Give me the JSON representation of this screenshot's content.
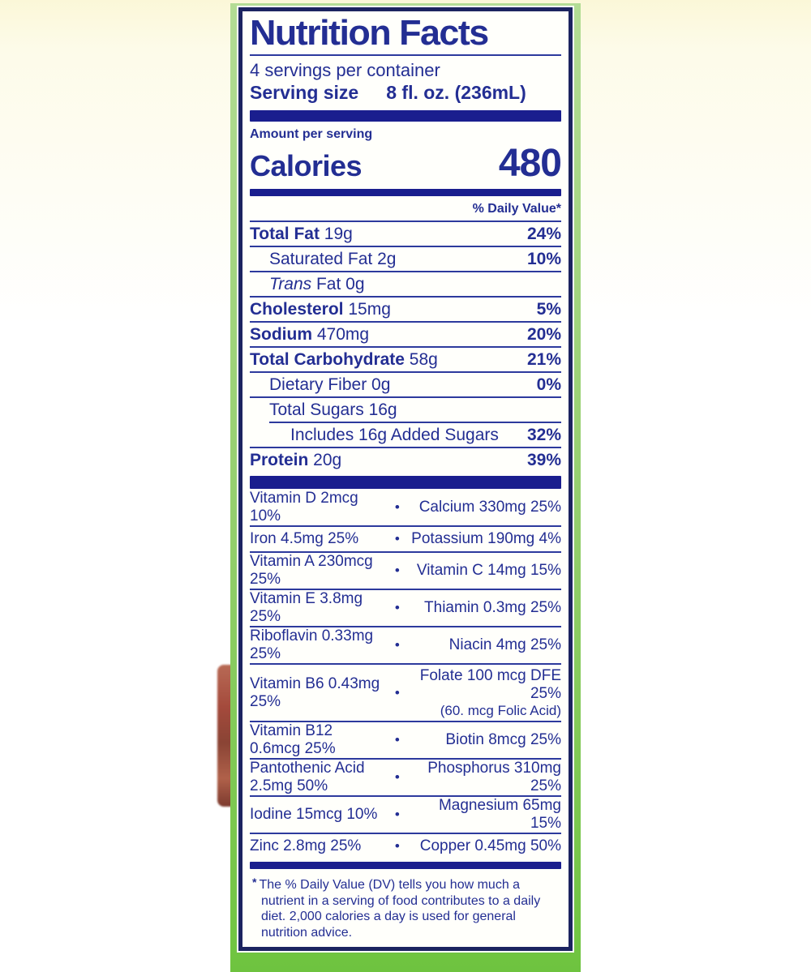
{
  "colors": {
    "text_navy": "#232e93",
    "bar_navy": "#1a1e8e",
    "border_navy": "#1c2460",
    "frame_green": "#8ccb63",
    "top_cream": "#fbf7d8"
  },
  "header": {
    "title": "Nutrition Facts",
    "servings_per_container": "4 servings per container",
    "serving_size_label": "Serving size",
    "serving_size_value": "8 fl. oz. (236mL)"
  },
  "calories": {
    "amount_label": "Amount per serving",
    "label": "Calories",
    "value": "480"
  },
  "daily_value_header": "% Daily Value*",
  "bullet": "•",
  "nutrients": [
    {
      "name_bold": "Total Fat",
      "amount": " 19g",
      "dv": "24%",
      "indent": 0
    },
    {
      "name": "Saturated Fat 2g",
      "dv": "10%",
      "indent": 1
    },
    {
      "name_italic": "Trans",
      "name": " Fat 0g",
      "dv": "",
      "indent": 1
    },
    {
      "name_bold": "Cholesterol",
      "amount": " 15mg",
      "dv": "5%",
      "indent": 0
    },
    {
      "name_bold": "Sodium",
      "amount": " 470mg",
      "dv": "20%",
      "indent": 0
    },
    {
      "name_bold": "Total Carbohydrate",
      "amount": " 58g",
      "dv": "21%",
      "indent": 0
    },
    {
      "name": "Dietary Fiber 0g",
      "dv": "0%",
      "indent": 1
    },
    {
      "name": "Total Sugars 16g",
      "dv": "",
      "indent": 1,
      "subline": true
    },
    {
      "name": "Includes 16g Added Sugars",
      "dv": "32%",
      "indent": 2
    },
    {
      "name_bold": "Protein",
      "amount": " 20g",
      "dv": "39%",
      "indent": 0,
      "noline": true
    }
  ],
  "vitamins": [
    {
      "left": "Vitamin D 2mcg 10%",
      "right": "Calcium 330mg 25%"
    },
    {
      "left": "Iron 4.5mg 25%",
      "right": "Potassium 190mg 4%"
    },
    {
      "left": "Vitamin A 230mcg 25%",
      "right": "Vitamin C 14mg 15%"
    },
    {
      "left": "Vitamin E 3.8mg 25%",
      "right": "Thiamin 0.3mg 25%"
    },
    {
      "left": "Riboflavin 0.33mg 25%",
      "right": "Niacin 4mg 25%"
    },
    {
      "left": "Vitamin B6 0.43mg 25%",
      "right": "Folate 100 mcg DFE 25%",
      "right_sub": "(60. mcg Folic Acid)"
    },
    {
      "left": "Vitamin B12 0.6mcg 25%",
      "right": "Biotin 8mcg 25%"
    },
    {
      "left": "Pantothenic Acid 2.5mg 50%",
      "right": "Phosphorus 310mg 25%"
    },
    {
      "left": "Iodine 15mcg 10%",
      "right": "Magnesium 65mg 15%"
    },
    {
      "left": "Zinc 2.8mg 25%",
      "right": "Copper 0.45mg 50%"
    }
  ],
  "footnote": {
    "asterisk": "*",
    "text": "The % Daily Value (DV) tells you how much a nutrient in a serving of food contributes to a daily diet. 2,000 calories a day is used for general nutrition advice."
  }
}
